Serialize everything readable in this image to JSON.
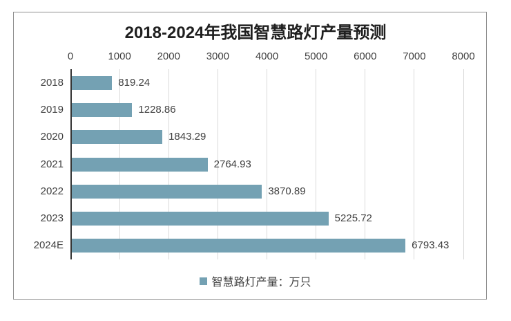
{
  "chart_data": {
    "type": "bar",
    "orientation": "horizontal",
    "title": "2018-2024年我国智慧路灯产量预测",
    "categories": [
      "2018",
      "2019",
      "2020",
      "2021",
      "2022",
      "2023",
      "2024E"
    ],
    "values": [
      819.24,
      1228.86,
      1843.29,
      2764.93,
      3870.89,
      5225.72,
      6793.43
    ],
    "value_labels": [
      "819.24",
      "1228.86",
      "1843.29",
      "2764.93",
      "3870.89",
      "5225.72",
      "6793.43"
    ],
    "xlim": [
      0,
      8000
    ],
    "x_ticks": [
      0,
      1000,
      2000,
      3000,
      4000,
      5000,
      6000,
      7000,
      8000
    ],
    "x_tick_labels": [
      "0",
      "1000",
      "2000",
      "3000",
      "4000",
      "5000",
      "6000",
      "7000",
      "8000"
    ],
    "grid": "vertical",
    "legend_position": "bottom",
    "legend": [
      {
        "label": "智慧路灯产量：万只",
        "marker": "square",
        "color": "#74a1b3"
      }
    ],
    "bar_color": "#74a1b3",
    "axis_color": "#333333",
    "gridline_color": "#d9d9d9",
    "text_color": "#404040",
    "title_color": "#1f1f1f",
    "frame_border_color": "#8e8e8e"
  }
}
